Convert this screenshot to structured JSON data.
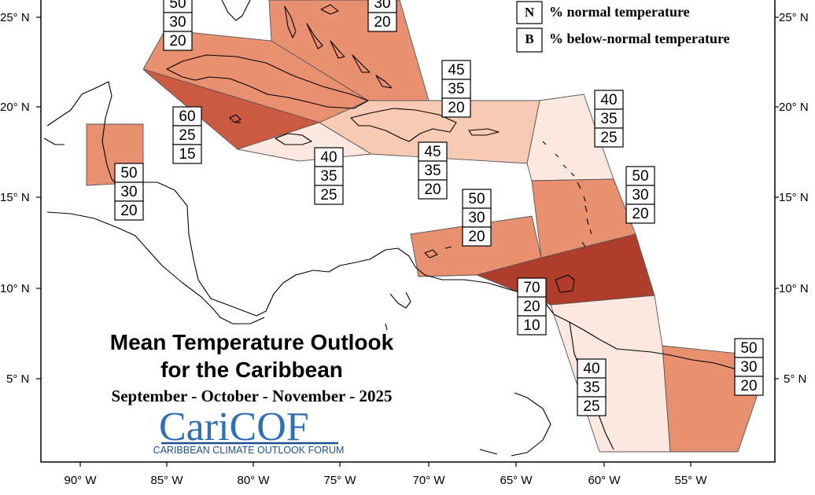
{
  "title": {
    "line1": "Mean Temperature Outlook",
    "line2": "for the Caribbean",
    "period": "September - October - November - 2025"
  },
  "logo": {
    "text": "CariCOF",
    "tagline": "CARIBBEAN CLIMATE OUTLOOK FORUM"
  },
  "legend": [
    {
      "key": "N",
      "text": "% normal temperature"
    },
    {
      "key": "B",
      "text": "% below-normal temperature"
    }
  ],
  "axes": {
    "lat_labels": [
      "25° N",
      "20° N",
      "15° N",
      "10° N",
      "5° N"
    ],
    "lon_labels": [
      "90° W",
      "85° W",
      "80° W",
      "75° W",
      "70° W",
      "65° W",
      "60° W",
      "55° W"
    ]
  },
  "colors": {
    "a70": "#b03c2b",
    "a60": "#cc5a43",
    "a50": "#e8906f",
    "a45": "#f8c9b3",
    "a40": "#fce8df"
  },
  "chart_data": {
    "type": "map",
    "regions": [
      {
        "id": "bahamas",
        "probs": [
          "50",
          "30",
          "20"
        ]
      },
      {
        "id": "bahamas-east",
        "probs": [
          "30",
          "20"
        ]
      },
      {
        "id": "belize-yucatan",
        "probs": [
          "50",
          "30",
          "20"
        ]
      },
      {
        "id": "western-caribbean-cuba",
        "probs": [
          "60",
          "25",
          "15"
        ]
      },
      {
        "id": "jamaica",
        "probs": [
          "40",
          "35",
          "25"
        ]
      },
      {
        "id": "hispaniola-puerto-rico",
        "probs": [
          "45",
          "35",
          "20"
        ]
      },
      {
        "id": "hispaniola-north",
        "probs": [
          "45",
          "35",
          "20"
        ]
      },
      {
        "id": "leeward-islands",
        "probs": [
          "40",
          "35",
          "25"
        ]
      },
      {
        "id": "windward-islands",
        "probs": [
          "50",
          "30",
          "20"
        ]
      },
      {
        "id": "abc-islands",
        "probs": [
          "50",
          "30",
          "20"
        ]
      },
      {
        "id": "trinidad-tobago",
        "probs": [
          "70",
          "20",
          "10"
        ]
      },
      {
        "id": "guyana",
        "probs": [
          "40",
          "35",
          "25"
        ]
      },
      {
        "id": "suriname-french-guiana",
        "probs": [
          "50",
          "30",
          "20"
        ]
      }
    ]
  }
}
